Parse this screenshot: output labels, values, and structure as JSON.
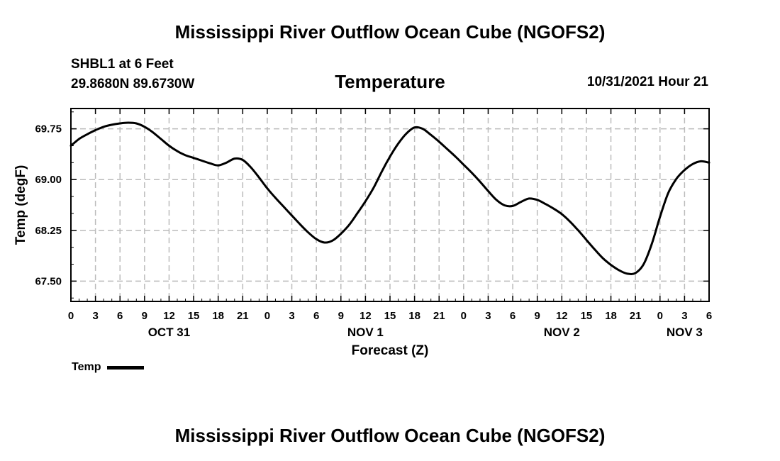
{
  "header": {
    "title": "Mississippi River Outflow Ocean Cube (NGOFS2)",
    "station_line1": "SHBL1 at 6 Feet",
    "station_line2": "29.8680N  89.6730W",
    "variable": "Temperature",
    "datetime": "10/31/2021 Hour 21"
  },
  "footer": {
    "title": "Mississippi River Outflow Ocean Cube (NGOFS2)"
  },
  "legend": {
    "label": "Temp"
  },
  "chart_data": {
    "type": "line",
    "title": "Temperature",
    "xlabel": "Forecast (Z)",
    "ylabel": "Temp (degF)",
    "xlim": [
      0,
      78
    ],
    "ylim": [
      67.2,
      70.05
    ],
    "grid": true,
    "legend_position": "bottom-left",
    "x_ticks": [
      0,
      3,
      6,
      9,
      12,
      15,
      18,
      21,
      24,
      27,
      30,
      33,
      36,
      39,
      42,
      45,
      48,
      51,
      54,
      57,
      60,
      63,
      66,
      69,
      72,
      75,
      78
    ],
    "x_tick_labels": [
      "0",
      "3",
      "6",
      "9",
      "12",
      "15",
      "18",
      "21",
      "0",
      "3",
      "6",
      "9",
      "12",
      "15",
      "18",
      "21",
      "0",
      "3",
      "6",
      "9",
      "12",
      "15",
      "18",
      "21",
      "0",
      "3",
      "6"
    ],
    "date_labels": [
      {
        "x": 12,
        "label": "OCT 31"
      },
      {
        "x": 36,
        "label": "NOV 1"
      },
      {
        "x": 60,
        "label": "NOV 2"
      },
      {
        "x": 75,
        "label": "NOV 3"
      }
    ],
    "y_ticks": [
      67.5,
      68.25,
      69.0,
      69.75
    ],
    "y_tick_labels": [
      "67.50",
      "68.25",
      "69.00",
      "69.75"
    ],
    "series": [
      {
        "name": "Temp",
        "x": [
          0,
          1,
          2,
          3,
          4,
          5,
          6,
          7,
          8,
          9,
          10,
          11,
          12,
          13,
          14,
          15,
          16,
          17,
          18,
          19,
          20,
          21,
          22,
          23,
          24,
          25,
          26,
          27,
          28,
          29,
          30,
          31,
          32,
          33,
          34,
          35,
          36,
          37,
          38,
          39,
          40,
          41,
          42,
          43,
          44,
          45,
          46,
          47,
          48,
          49,
          50,
          51,
          52,
          53,
          54,
          55,
          56,
          57,
          58,
          59,
          60,
          61,
          62,
          63,
          64,
          65,
          66,
          67,
          68,
          69,
          70,
          71,
          72,
          73,
          74,
          75,
          76,
          77,
          78
        ],
        "values": [
          69.5,
          69.6,
          69.67,
          69.73,
          69.78,
          69.81,
          69.83,
          69.84,
          69.83,
          69.78,
          69.7,
          69.6,
          69.5,
          69.42,
          69.36,
          69.32,
          69.28,
          69.24,
          69.21,
          69.25,
          69.31,
          69.29,
          69.18,
          69.03,
          68.87,
          68.73,
          68.6,
          68.47,
          68.34,
          68.22,
          68.12,
          68.07,
          68.1,
          68.2,
          68.33,
          68.5,
          68.68,
          68.88,
          69.12,
          69.34,
          69.53,
          69.68,
          69.77,
          69.75,
          69.66,
          69.56,
          69.45,
          69.34,
          69.22,
          69.1,
          68.97,
          68.83,
          68.7,
          68.62,
          68.61,
          68.67,
          68.72,
          68.7,
          68.64,
          68.57,
          68.49,
          68.38,
          68.25,
          68.11,
          67.97,
          67.84,
          67.74,
          67.66,
          67.61,
          67.62,
          67.75,
          68.05,
          68.45,
          68.8,
          69.01,
          69.14,
          69.23,
          69.27,
          69.25
        ]
      }
    ]
  }
}
